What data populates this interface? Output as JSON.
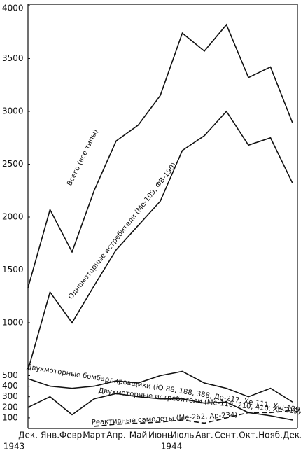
{
  "chart_data": {
    "type": "line",
    "categories": [
      "Дек.",
      "Янв.",
      "Февр.",
      "Март",
      "Апр.",
      "Май",
      "Июнь",
      "Июль",
      "Авг.",
      "Сент.",
      "Окт.",
      "Нояб.",
      "Дек."
    ],
    "x_group_labels": [
      "1943",
      "1944"
    ],
    "series": [
      {
        "name": "Всего (все типы)",
        "color": "#111111",
        "dash": false,
        "values": [
          1330,
          2070,
          1670,
          2250,
          2720,
          2870,
          3150,
          3740,
          3570,
          3820,
          3320,
          3420,
          2890
        ]
      },
      {
        "name": "Одномоторные истребители (Ме-109, ФВ-190)",
        "color": "#111111",
        "dash": false,
        "values": [
          550,
          1290,
          1000,
          1350,
          1690,
          1920,
          2150,
          2630,
          2770,
          3000,
          2680,
          2750,
          2320
        ]
      },
      {
        "name": "Двухмоторные бомбардировщики (Ю-88, 188, 388, До-217, Хе-111, Хш-129)",
        "color": "#111111",
        "dash": false,
        "values": [
          470,
          400,
          380,
          400,
          450,
          430,
          500,
          540,
          430,
          380,
          300,
          380,
          250
        ]
      },
      {
        "name": "Двухмоторные истребители (Ме-110, 210, 410, Хе-219)",
        "color": "#111111",
        "dash": false,
        "values": [
          200,
          300,
          130,
          280,
          330,
          300,
          280,
          280,
          240,
          250,
          150,
          120,
          80
        ]
      },
      {
        "name": "Реактивные самолеты (Ме-262, Ар-234)",
        "color": "#111111",
        "dash": true,
        "values": [
          null,
          null,
          null,
          20,
          40,
          50,
          60,
          80,
          50,
          100,
          150,
          150,
          170
        ]
      }
    ],
    "ylim": [
      0,
      4000
    ],
    "yticks": [
      100,
      200,
      300,
      400,
      500,
      1000,
      1500,
      2000,
      2500,
      3000,
      3500,
      4000
    ]
  }
}
